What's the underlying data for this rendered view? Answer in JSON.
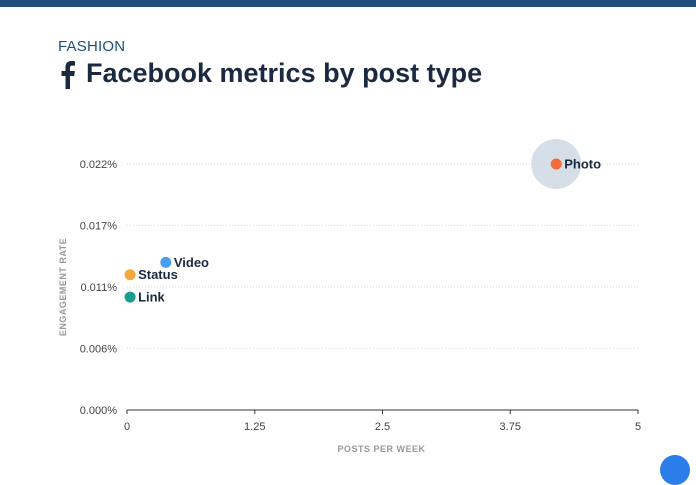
{
  "header": {
    "category": "FASHION",
    "icon": "facebook-f-icon",
    "title": "Facebook metrics by post type"
  },
  "chart_data": {
    "type": "scatter",
    "title": "Facebook metrics by post type",
    "xlabel": "POSTS PER WEEK",
    "ylabel": "ENGAGEMENT RATE",
    "xlim": [
      0,
      5
    ],
    "ylim": [
      0,
      0.022
    ],
    "x_ticks": [
      "0",
      "1.25",
      "2.5",
      "3.75",
      "5"
    ],
    "y_ticks": [
      "0.000%",
      "0.006%",
      "0.011%",
      "0.017%",
      "0.022%"
    ],
    "grid": true,
    "points": [
      {
        "label": "Photo",
        "x": 4.2,
        "y": 0.022,
        "color": "#f26b3a",
        "highlight": true
      },
      {
        "label": "Video",
        "x": 0.38,
        "y": 0.0132,
        "color": "#4a9eed",
        "highlight": false
      },
      {
        "label": "Status",
        "x": 0.03,
        "y": 0.0121,
        "color": "#f5a93b",
        "highlight": false
      },
      {
        "label": "Link",
        "x": 0.03,
        "y": 0.0101,
        "color": "#1b9e8f",
        "highlight": false
      }
    ]
  }
}
